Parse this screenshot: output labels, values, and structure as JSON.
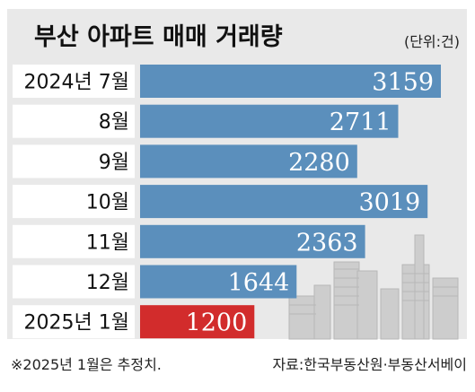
{
  "title": "부산 아파트 매매 거래량",
  "unit": "(단위:건)",
  "chart_data": {
    "type": "bar",
    "orientation": "horizontal",
    "title": "부산 아파트 매매 거래량",
    "unit": "(단위:건)",
    "categories": [
      "2024년 7월",
      "8월",
      "9월",
      "10월",
      "11월",
      "12월",
      "2025년 1월"
    ],
    "values": [
      3159,
      2711,
      2280,
      3019,
      2363,
      1644,
      1200
    ],
    "highlight_index": 6,
    "xlim": [
      0,
      3159
    ],
    "grid": false,
    "legend": "none"
  },
  "colors": {
    "page_bg": "#ffffff",
    "panel_bg": "#e9e9e9",
    "bar": "#5b8fbc",
    "bar_highlight": "#d22c2c",
    "value_text": "#ffffff",
    "category_text": "#111111",
    "skyline": "#c9c9c9"
  },
  "footer": {
    "note": "※2025년 1월은 추정치.",
    "source": "자료:한국부동산원·부동산서베이"
  }
}
